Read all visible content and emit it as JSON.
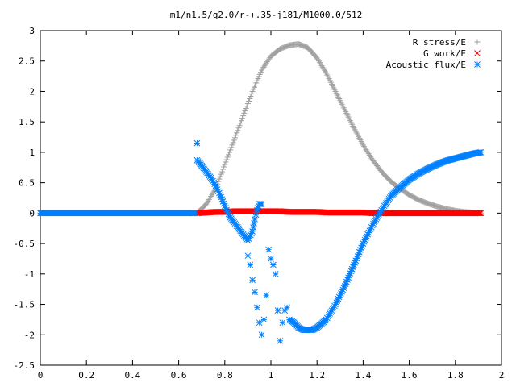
{
  "chart_data": {
    "type": "scatter",
    "title": "m1/n1.5/q2.0/r-+.35-j181/M1000.0/512",
    "xlabel": "",
    "ylabel": "",
    "xlim": [
      0,
      2
    ],
    "ylim": [
      -2.5,
      3
    ],
    "xticks": [
      "0",
      "0.2",
      "0.4",
      "0.6",
      "0.8",
      "1",
      "1.2",
      "1.4",
      "1.6",
      "1.8",
      "2"
    ],
    "yticks": [
      "3",
      "2.5",
      "2",
      "1.5",
      "1",
      "0.5",
      "0",
      "-0.5",
      "-1",
      "-1.5",
      "-2",
      "-2.5"
    ],
    "grid": false,
    "legend_position": "top-right",
    "series": [
      {
        "name": "R stress/E",
        "marker": "plus",
        "color": "#a0a0a0",
        "x": [
          0.68,
          0.72,
          0.76,
          0.8,
          0.84,
          0.88,
          0.92,
          0.96,
          1.0,
          1.04,
          1.08,
          1.12,
          1.16,
          1.2,
          1.24,
          1.28,
          1.32,
          1.36,
          1.4,
          1.44,
          1.48,
          1.52,
          1.56,
          1.6,
          1.64,
          1.68,
          1.72,
          1.76,
          1.8,
          1.84,
          1.88,
          1.91
        ],
        "y": [
          0.0,
          0.15,
          0.4,
          0.8,
          1.2,
          1.6,
          2.0,
          2.35,
          2.58,
          2.7,
          2.76,
          2.78,
          2.72,
          2.55,
          2.3,
          2.0,
          1.7,
          1.4,
          1.12,
          0.88,
          0.68,
          0.52,
          0.4,
          0.3,
          0.22,
          0.16,
          0.11,
          0.07,
          0.04,
          0.02,
          0.01,
          0.0
        ]
      },
      {
        "name": "G work/E",
        "marker": "cross",
        "color": "#ff0000",
        "x": [
          0.68,
          0.72,
          0.76,
          0.8,
          0.84,
          0.88,
          0.92,
          0.96,
          1.0,
          1.04,
          1.08,
          1.12,
          1.16,
          1.2,
          1.24,
          1.28,
          1.32,
          1.36,
          1.4,
          1.44,
          1.48,
          1.52,
          1.56,
          1.6,
          1.64,
          1.68,
          1.72,
          1.76,
          1.8,
          1.84,
          1.88,
          1.91
        ],
        "y": [
          0.0,
          0.01,
          0.02,
          0.02,
          0.03,
          0.03,
          0.03,
          0.03,
          0.03,
          0.03,
          0.02,
          0.02,
          0.02,
          0.02,
          0.01,
          0.01,
          0.01,
          0.01,
          0.01,
          0.0,
          0.0,
          0.0,
          0.0,
          0.0,
          0.0,
          0.0,
          0.0,
          0.0,
          0.0,
          0.0,
          0.0,
          0.0
        ]
      },
      {
        "name": "Acoustic flux/E",
        "marker": "star",
        "color": "#0080ff",
        "x": [
          0.0,
          0.1,
          0.2,
          0.3,
          0.4,
          0.5,
          0.6,
          0.67,
          0.68,
          0.68,
          0.7,
          0.72,
          0.74,
          0.76,
          0.78,
          0.8,
          0.82,
          0.84,
          0.86,
          0.88,
          0.9,
          0.92,
          0.93,
          0.94,
          0.95,
          0.96,
          0.9,
          0.91,
          0.92,
          0.93,
          0.94,
          0.95,
          0.96,
          0.97,
          0.98,
          0.99,
          1.0,
          1.01,
          1.02,
          1.03,
          1.04,
          1.05,
          1.06,
          1.07,
          1.08,
          1.1,
          1.12,
          1.14,
          1.16,
          1.18,
          1.2,
          1.24,
          1.28,
          1.32,
          1.36,
          1.4,
          1.44,
          1.48,
          1.52,
          1.56,
          1.6,
          1.64,
          1.68,
          1.72,
          1.76,
          1.8,
          1.84,
          1.88,
          1.91
        ],
        "y": [
          0.0,
          0.0,
          0.0,
          0.0,
          0.0,
          0.0,
          0.0,
          0.0,
          1.15,
          0.87,
          0.78,
          0.68,
          0.58,
          0.45,
          0.3,
          0.12,
          -0.05,
          -0.15,
          -0.25,
          -0.35,
          -0.45,
          -0.3,
          -0.1,
          0.05,
          0.15,
          0.15,
          -0.7,
          -0.85,
          -1.1,
          -1.3,
          -1.55,
          -1.8,
          -2.0,
          -1.75,
          -1.35,
          -0.6,
          -0.75,
          -0.85,
          -1.0,
          -1.6,
          -2.1,
          -1.8,
          -1.6,
          -1.55,
          -1.75,
          -1.8,
          -1.88,
          -1.92,
          -1.92,
          -1.92,
          -1.88,
          -1.75,
          -1.5,
          -1.2,
          -0.85,
          -0.5,
          -0.2,
          0.05,
          0.28,
          0.42,
          0.55,
          0.65,
          0.73,
          0.8,
          0.86,
          0.9,
          0.94,
          0.98,
          1.0
        ]
      }
    ]
  }
}
